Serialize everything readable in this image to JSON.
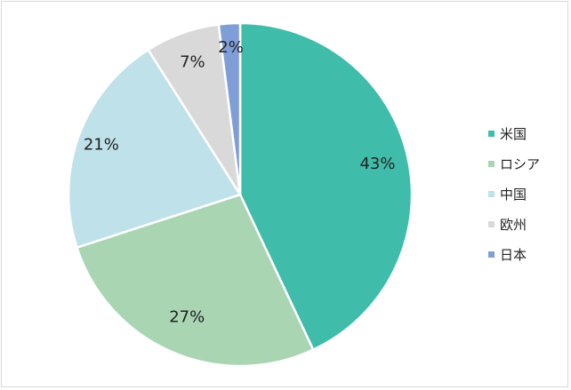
{
  "chart_data": {
    "type": "pie",
    "title": "",
    "categories": [
      "米国",
      "ロシア",
      "中国",
      "欧州",
      "日本"
    ],
    "values": [
      43,
      27,
      21,
      7,
      2
    ],
    "labels": [
      "43%",
      "27%",
      "21%",
      "7%",
      "2%"
    ],
    "colors": [
      "#40bcaa",
      "#a9d5b3",
      "#bfe1e9",
      "#d9d9d9",
      "#7f9ed8"
    ],
    "start_angle_deg": 0,
    "direction": "clockwise",
    "legend_position": "right"
  }
}
